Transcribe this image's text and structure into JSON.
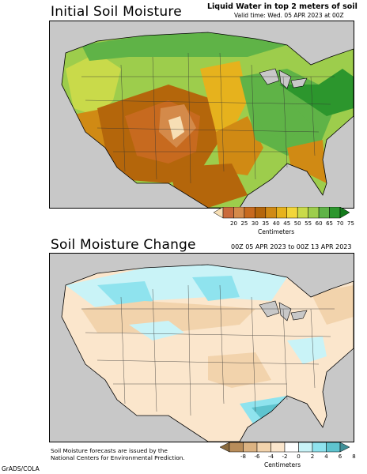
{
  "top_panel": {
    "title": "Initial Soil Moisture",
    "subtitle": "Liquid Water in top 2 meters of soil",
    "valid_time": "Valid time: Wed. 05 APR 2023 at 00Z",
    "colorbar": {
      "ticks": [
        "20",
        "25",
        "30",
        "35",
        "40",
        "45",
        "50",
        "55",
        "60",
        "65",
        "70",
        "75"
      ],
      "units": "Centimeters",
      "colors": [
        "#f7dfb5",
        "#c96a3b",
        "#d48a4a",
        "#c76a1f",
        "#b4660b",
        "#d08a14",
        "#e6b21d",
        "#f2d63a",
        "#c9da4a",
        "#9dcd4c",
        "#5fb347",
        "#2c962d",
        "#137a1b"
      ]
    }
  },
  "bottom_panel": {
    "title": "Soil Moisture Change",
    "subtitle": "00Z 05 APR 2023 to 00Z 13 APR 2023",
    "colorbar": {
      "ticks": [
        "-8",
        "-6",
        "-4",
        "-2",
        "0",
        "2",
        "4",
        "6",
        "8"
      ],
      "units": "Centimeters",
      "colors": [
        "#8a6b3f",
        "#b98d5a",
        "#dcb382",
        "#f2d3ac",
        "#fbe6cc",
        "#ffffff",
        "#c9f3f7",
        "#8fe3ee",
        "#5fc4cf",
        "#3f8f97"
      ]
    }
  },
  "footer": {
    "line1": "Soil Moisture forecasts are issued by the",
    "line2": "National Centers for Environmental Prediction."
  },
  "credit": "GrADS/COLA"
}
